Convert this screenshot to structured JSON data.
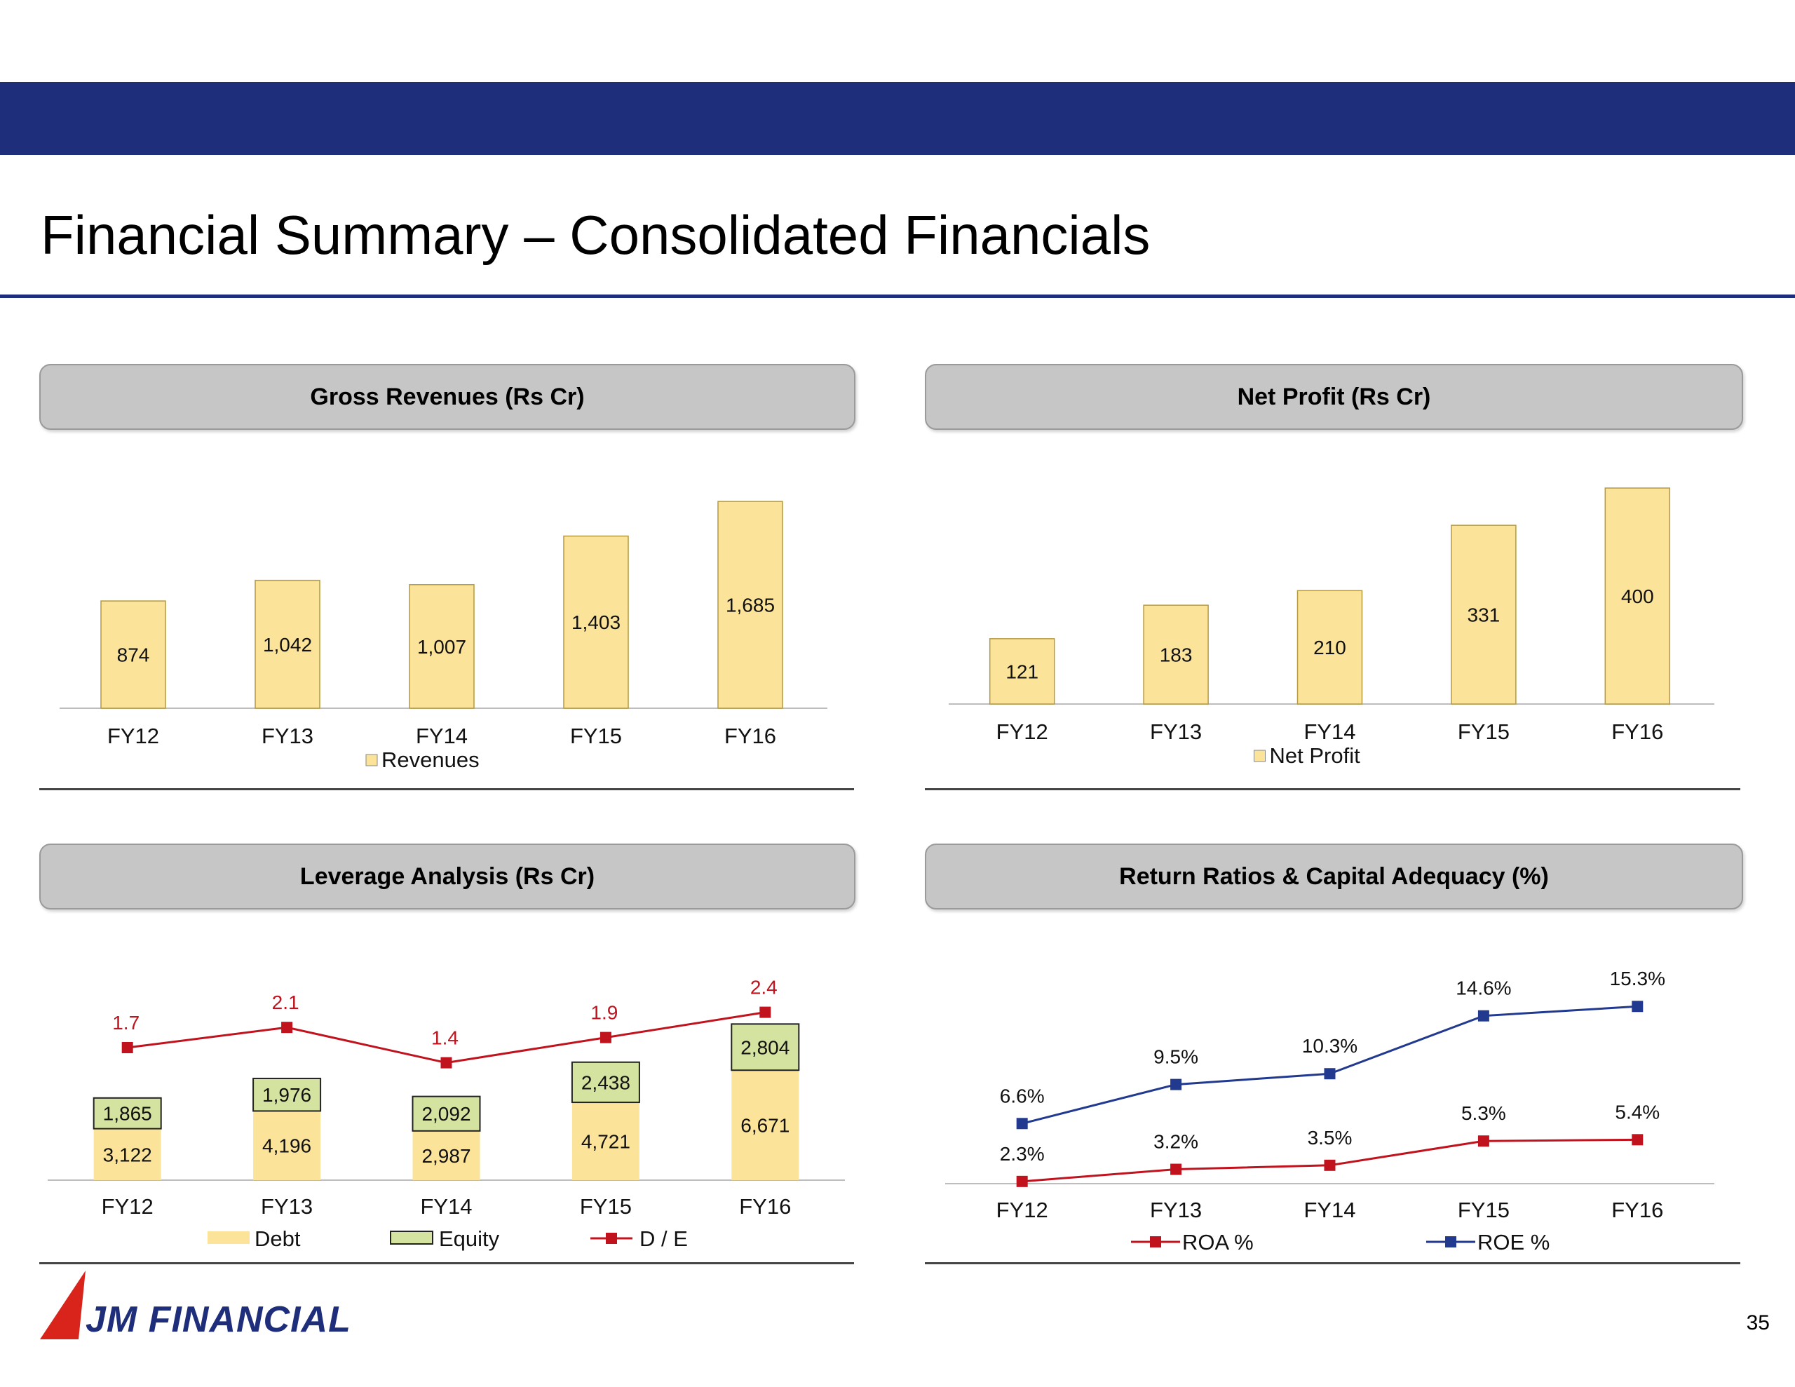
{
  "header": {
    "title": "Financial Summary – Consolidated Financials"
  },
  "panels": {
    "revenues": {
      "title": "Gross Revenues (Rs Cr)"
    },
    "net_profit": {
      "title": "Net Profit (Rs Cr)"
    },
    "leverage": {
      "title": "Leverage Analysis (Rs Cr)"
    },
    "returns": {
      "title": "Return Ratios & Capital Adequacy (%)"
    }
  },
  "footer": {
    "logo_text": "JM FINANCIAL",
    "page_number": "35"
  },
  "colors": {
    "band": "#1f2e7a",
    "bar_yellow": "#fbe39a",
    "bar_green": "#d5e3a0",
    "line_red": "#c0131d",
    "line_blue": "#213a8f"
  },
  "chart_data": [
    {
      "id": "revenues",
      "type": "bar",
      "categories": [
        "FY12",
        "FY13",
        "FY14",
        "FY15",
        "FY16"
      ],
      "series": [
        {
          "name": "Revenues",
          "values": [
            874,
            1042,
            1007,
            1403,
            1685
          ],
          "labels": [
            "874",
            "1,042",
            "1,007",
            "1,403",
            "1,685"
          ]
        }
      ],
      "legend": "bottom"
    },
    {
      "id": "net_profit",
      "type": "bar",
      "categories": [
        "FY12",
        "FY13",
        "FY14",
        "FY15",
        "FY16"
      ],
      "series": [
        {
          "name": "Net Profit",
          "values": [
            121,
            183,
            210,
            331,
            400
          ],
          "labels": [
            "121",
            "183",
            "210",
            "331",
            "400"
          ]
        }
      ],
      "legend": "bottom"
    },
    {
      "id": "leverage",
      "type": "bar",
      "stacked": true,
      "categories": [
        "FY12",
        "FY13",
        "FY14",
        "FY15",
        "FY16"
      ],
      "series": [
        {
          "name": "Debt",
          "values": [
            3122,
            4196,
            2987,
            4721,
            6671
          ],
          "labels": [
            "3,122",
            "4,196",
            "2,987",
            "4,721",
            "6,671"
          ]
        },
        {
          "name": "Equity",
          "values": [
            1865,
            1976,
            2092,
            2438,
            2804
          ],
          "labels": [
            "1,865",
            "1,976",
            "2,092",
            "2,438",
            "2,804"
          ]
        }
      ],
      "line_series": {
        "name": "D / E",
        "values": [
          1.7,
          2.1,
          1.4,
          1.9,
          2.4
        ],
        "labels": [
          "1.7",
          "2.1",
          "1.4",
          "1.9",
          "2.4"
        ]
      },
      "legend": "bottom"
    },
    {
      "id": "returns",
      "type": "line",
      "categories": [
        "FY12",
        "FY13",
        "FY14",
        "FY15",
        "FY16"
      ],
      "series": [
        {
          "name": "ROA %",
          "values": [
            2.3,
            3.2,
            3.5,
            5.3,
            5.4
          ],
          "labels": [
            "2.3%",
            "3.2%",
            "3.5%",
            "5.3%",
            "5.4%"
          ]
        },
        {
          "name": "ROE %",
          "values": [
            6.6,
            9.5,
            10.3,
            14.6,
            15.3
          ],
          "labels": [
            "6.6%",
            "9.5%",
            "10.3%",
            "14.6%",
            "15.3%"
          ]
        }
      ],
      "legend": "bottom"
    }
  ]
}
